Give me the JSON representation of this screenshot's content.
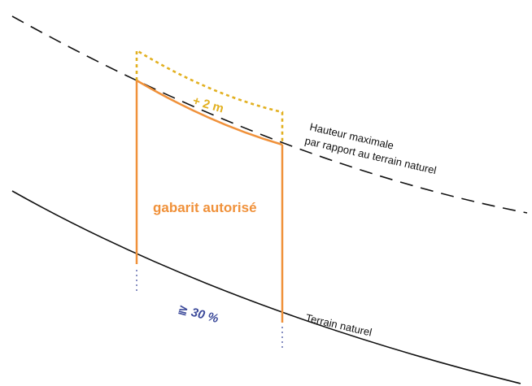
{
  "labels": {
    "hauteur_line1": "Hauteur maximale",
    "hauteur_line2": "par rapport au terrain naturel",
    "gabarit": "gabarit autorisé",
    "plus_two": "+ 2 m",
    "slope": "≧ 30 %",
    "terrain": "Terrain naturel"
  },
  "colors": {
    "orange": "#f0913a",
    "gold": "#e2b020",
    "slope_blue": "#3c4a9a",
    "line": "#111111",
    "dotted_blue": "#5560a8"
  }
}
